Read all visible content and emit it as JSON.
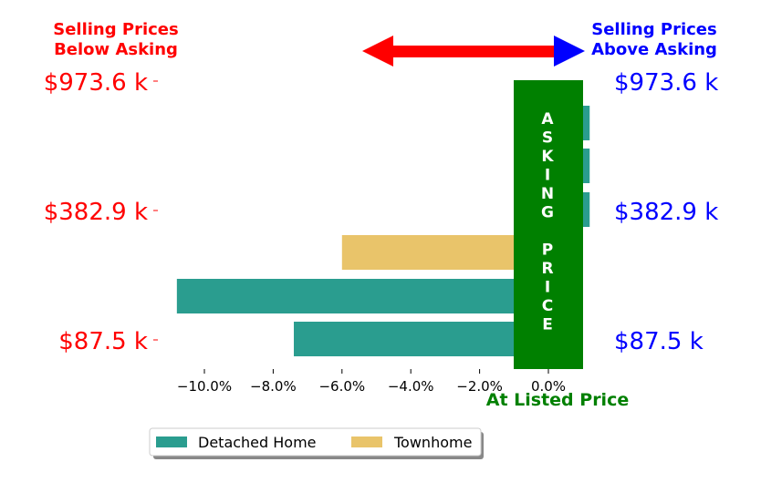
{
  "header": {
    "left": [
      "Selling Prices",
      "Below Asking"
    ],
    "right": [
      "Selling Prices",
      "Above Asking"
    ]
  },
  "colors": {
    "detached": "#2a9d8f",
    "townhome": "#e9c46a",
    "asking_band": "#008000",
    "left_labels": "#ff0000",
    "right_labels": "#0000ff",
    "arrow_left": "#ff0000",
    "arrow_right": "#0000ff"
  },
  "asking_text": [
    "A",
    "S",
    "K",
    "I",
    "N",
    "G",
    "",
    "P",
    "R",
    "I",
    "C",
    "E"
  ],
  "at_listed_label": "At Listed Price",
  "chart_data": {
    "type": "bar",
    "orientation": "horizontal",
    "xlim": [
      -11.5,
      1.2
    ],
    "x_ticks": [
      -10,
      -8,
      -6,
      -4,
      -2,
      0
    ],
    "x_tick_labels": [
      "−10.0%",
      "−8.0%",
      "−6.0%",
      "−4.0%",
      "−2.0%",
      "0.0%"
    ],
    "price_labels": [
      "$973.6 k",
      "$382.9 k",
      "$87.5 k"
    ],
    "series": [
      {
        "name": "Detached Home",
        "values": [
          1.2,
          1.2,
          1.2,
          null,
          -10.8,
          -7.4
        ]
      },
      {
        "name": "Townhome",
        "values": [
          null,
          null,
          null,
          -6.0,
          null,
          null
        ]
      }
    ],
    "legend": [
      "Detached Home",
      "Townhome"
    ],
    "legend_position": "bottom-left"
  }
}
